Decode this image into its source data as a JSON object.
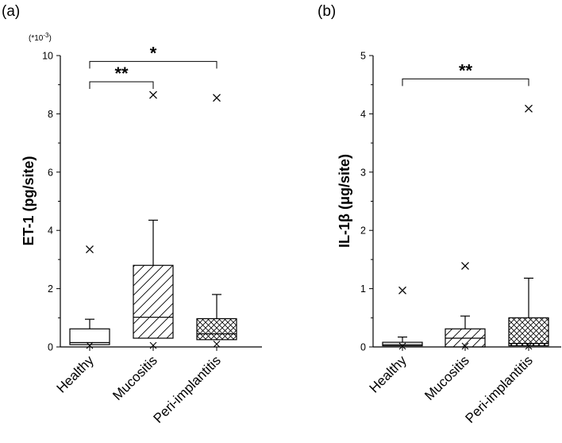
{
  "chart_data": [
    {
      "type": "boxplot",
      "panel_label": "(a)",
      "ylabel": "ET-1 (pg/site)",
      "scale_note": "(*10",
      "scale_exp": "-3",
      "scale_close": ")",
      "ylim": [
        0,
        10
      ],
      "yticks": [
        "0",
        "2",
        "4",
        "6",
        "8",
        "10"
      ],
      "categories": [
        "Healthy",
        "Mucositis",
        "Peri-implantitis"
      ],
      "boxes": [
        {
          "name": "Healthy",
          "pattern": "none",
          "min": 0.05,
          "q1": 0.08,
          "median": 0.15,
          "q3": 0.62,
          "whisker_high": 0.95,
          "outliers": [
            3.35
          ],
          "extremes_low": [
            0.05
          ]
        },
        {
          "name": "Mucositis",
          "pattern": "diagonal",
          "min": 0.3,
          "q1": 0.3,
          "median": 1.02,
          "q3": 2.8,
          "whisker_high": 4.35,
          "outliers": [
            8.65
          ],
          "extremes_low": [
            0.05
          ]
        },
        {
          "name": "Peri-implantitis",
          "pattern": "crosshatch",
          "min": 0.25,
          "q1": 0.25,
          "median": 0.45,
          "q3": 0.97,
          "whisker_high": 1.8,
          "outliers": [
            8.55
          ],
          "extremes_low": [
            0.1
          ]
        }
      ],
      "significance": [
        {
          "from": 0,
          "to": 1,
          "label": "**",
          "y": 9.1
        },
        {
          "from": 0,
          "to": 2,
          "label": "*",
          "y": 9.8
        }
      ]
    },
    {
      "type": "boxplot",
      "panel_label": "(b)",
      "ylabel": "IL-1β (μg/site)",
      "ylim": [
        0,
        5
      ],
      "yticks": [
        "0",
        "1",
        "2",
        "3",
        "4",
        "5"
      ],
      "categories": [
        "Healthy",
        "Mucositis",
        "Peri-implantitis"
      ],
      "boxes": [
        {
          "name": "Healthy",
          "pattern": "none",
          "min": 0.01,
          "q1": 0.02,
          "median": 0.04,
          "q3": 0.08,
          "whisker_high": 0.17,
          "outliers": [
            0.97
          ],
          "extremes_low": [
            0.01
          ]
        },
        {
          "name": "Mucositis",
          "pattern": "diagonal",
          "min": 0.0,
          "q1": 0.0,
          "median": 0.15,
          "q3": 0.31,
          "whisker_high": 0.53,
          "outliers": [
            1.39
          ],
          "extremes_low": [
            0.0
          ]
        },
        {
          "name": "Peri-implantitis",
          "pattern": "crosshatch",
          "min": 0.02,
          "q1": 0.02,
          "median": 0.06,
          "q3": 0.5,
          "whisker_high": 1.18,
          "outliers": [
            4.09
          ],
          "extremes_low": [
            0.01
          ]
        }
      ],
      "significance": [
        {
          "from": 0,
          "to": 2,
          "label": "**",
          "y": 4.6
        }
      ]
    }
  ]
}
